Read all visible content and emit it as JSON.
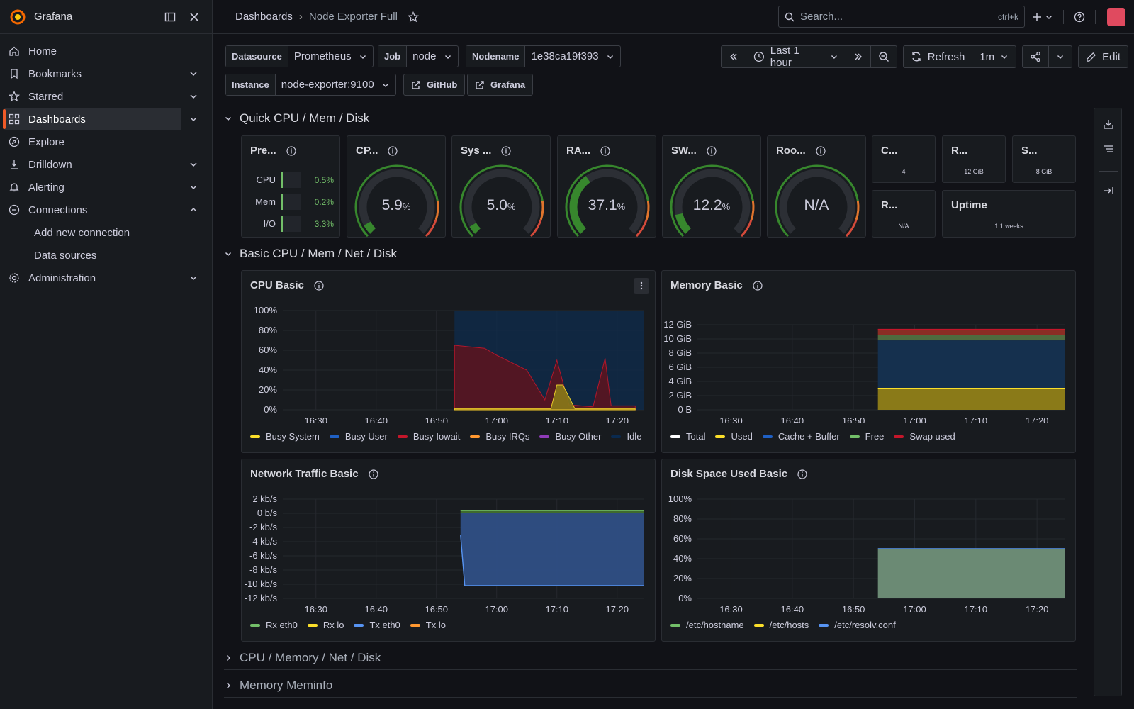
{
  "app": {
    "name": "Grafana"
  },
  "sidebar": {
    "items": [
      {
        "label": "Home",
        "icon": "home-icon"
      },
      {
        "label": "Bookmarks",
        "icon": "bookmark-icon"
      },
      {
        "label": "Starred",
        "icon": "star-icon"
      },
      {
        "label": "Dashboards",
        "icon": "apps-icon",
        "active": true
      },
      {
        "label": "Explore",
        "icon": "compass-icon"
      },
      {
        "label": "Drilldown",
        "icon": "drilldown-icon"
      },
      {
        "label": "Alerting",
        "icon": "bell-icon"
      },
      {
        "label": "Connections",
        "icon": "link-icon",
        "expanded": true
      },
      {
        "label": "Administration",
        "icon": "cog-icon"
      }
    ],
    "sub_items": [
      "Add new connection",
      "Data sources"
    ]
  },
  "topbar": {
    "breadcrumb": [
      "Dashboards",
      "Node Exporter Full"
    ],
    "search_placeholder": "Search...",
    "search_shortcut": "ctrl+k"
  },
  "variables": {
    "datasource": {
      "label": "Datasource",
      "value": "Prometheus"
    },
    "job": {
      "label": "Job",
      "value": "node"
    },
    "nodename": {
      "label": "Nodename",
      "value": "1e38ca19f393"
    },
    "instance": {
      "label": "Instance",
      "value": "node-exporter:9100"
    },
    "links": [
      "GitHub",
      "Grafana"
    ]
  },
  "toolbar": {
    "time_range": "Last 1 hour",
    "refresh_label": "Refresh",
    "refresh_interval": "1m",
    "edit_label": "Edit"
  },
  "rows": {
    "quick": "Quick CPU / Mem / Disk",
    "basic": "Basic CPU / Mem / Net / Disk",
    "cpu_mem_net_disk": "CPU / Memory / Net / Disk",
    "meminfo": "Memory Meminfo"
  },
  "quick_panels": {
    "pressure": {
      "title": "Pre...",
      "rows": [
        {
          "label": "CPU",
          "value": "0.5%"
        },
        {
          "label": "Mem",
          "value": "0.2%"
        },
        {
          "label": "I/O",
          "value": "3.3%"
        }
      ]
    },
    "gauges": [
      {
        "title": "CP...",
        "value": "5.9",
        "unit": "%",
        "percent": 5.9
      },
      {
        "title": "Sys ...",
        "value": "5.0",
        "unit": "%",
        "percent": 5.0
      },
      {
        "title": "RA...",
        "value": "37.1",
        "unit": "%",
        "percent": 37.1
      },
      {
        "title": "SW...",
        "value": "12.2",
        "unit": "%",
        "percent": 12.2
      },
      {
        "title": "Roo...",
        "value": "N/A",
        "unit": "",
        "percent": 0
      }
    ],
    "stats": [
      {
        "title": "C...",
        "value": "4"
      },
      {
        "title": "R...",
        "value": "12 GiB"
      },
      {
        "title": "S...",
        "value": "8 GiB"
      },
      {
        "title": "R...",
        "value": "N/A"
      },
      {
        "title": "Uptime",
        "value": "1.1 weeks"
      }
    ]
  },
  "chart_data": [
    {
      "type": "area",
      "title": "CPU Basic",
      "x": [
        "16:30",
        "16:40",
        "16:50",
        "17:00",
        "17:10",
        "17:20"
      ],
      "ylim": [
        0,
        100
      ],
      "yticks": [
        "100%",
        "80%",
        "60%",
        "40%",
        "20%",
        "0%"
      ],
      "legend": [
        "Busy System",
        "Busy User",
        "Busy Iowait",
        "Busy IRQs",
        "Busy Other",
        "Idle"
      ],
      "colors": [
        "#fade2a",
        "#1f60c4",
        "#c4162a",
        "#ff9830",
        "#8f3bb8",
        "#0a2a4f"
      ],
      "series": [
        {
          "name": "Busy Iowait",
          "values_pct_at": [
            [
              16.53,
              65
            ],
            [
              16.58,
              62
            ],
            [
              17.0,
              55
            ],
            [
              17.05,
              40
            ],
            [
              17.08,
              10
            ],
            [
              17.1,
              50
            ],
            [
              17.12,
              5
            ],
            [
              17.16,
              3
            ],
            [
              17.175,
              52
            ],
            [
              17.19,
              4
            ],
            [
              17.23,
              4
            ]
          ]
        },
        {
          "name": "Busy System",
          "values_pct_at": [
            [
              16.53,
              1
            ],
            [
              17.09,
              1
            ],
            [
              17.1,
              25
            ],
            [
              17.115,
              25
            ],
            [
              17.125,
              1
            ],
            [
              17.23,
              1
            ]
          ]
        }
      ]
    },
    {
      "type": "area",
      "title": "Memory Basic",
      "x": [
        "16:30",
        "16:40",
        "16:50",
        "17:00",
        "17:10",
        "17:20"
      ],
      "ylim": [
        0,
        13
      ],
      "yticks": [
        "12 GiB",
        "10 GiB",
        "8 GiB",
        "6 GiB",
        "4 GiB",
        "2 GiB",
        "0 B"
      ],
      "legend": [
        "Total",
        "Used",
        "Cache + Buffer",
        "Free",
        "Swap used"
      ],
      "colors": [
        "#ffffff",
        "#fade2a",
        "#1f60c4",
        "#73bf69",
        "#c4162a"
      ],
      "series": [
        {
          "name": "Used",
          "value": 3.3
        },
        {
          "name": "Cache + Buffer",
          "value": 10.6
        },
        {
          "name": "Free",
          "value": 11.4
        },
        {
          "name": "Swap used",
          "value": 12.3
        }
      ]
    },
    {
      "type": "area",
      "title": "Network Traffic Basic",
      "x": [
        "16:30",
        "16:40",
        "16:50",
        "17:00",
        "17:10",
        "17:20"
      ],
      "ylim": [
        -12,
        2
      ],
      "yticks": [
        "2 kb/s",
        "0 b/s",
        "-2 kb/s",
        "-4 kb/s",
        "-6 kb/s",
        "-8 kb/s",
        "-10 kb/s",
        "-12 kb/s"
      ],
      "legend": [
        "Rx eth0",
        "Rx lo",
        "Tx eth0",
        "Tx lo"
      ],
      "colors": [
        "#73bf69",
        "#fade2a",
        "#5794f2",
        "#ff9830"
      ],
      "series": [
        {
          "name": "Rx eth0",
          "value": 0.4
        },
        {
          "name": "Tx eth0",
          "value": -10.2
        }
      ]
    },
    {
      "type": "area",
      "title": "Disk Space Used Basic",
      "x": [
        "16:30",
        "16:40",
        "16:50",
        "17:00",
        "17:10",
        "17:20"
      ],
      "ylim": [
        0,
        100
      ],
      "yticks": [
        "100%",
        "80%",
        "60%",
        "40%",
        "20%",
        "0%"
      ],
      "legend": [
        "/etc/hostname",
        "/etc/hosts",
        "/etc/resolv.conf"
      ],
      "colors": [
        "#73bf69",
        "#fade2a",
        "#5794f2"
      ],
      "series": [
        {
          "name": "/etc/resolv.conf",
          "value": 50
        }
      ]
    }
  ]
}
